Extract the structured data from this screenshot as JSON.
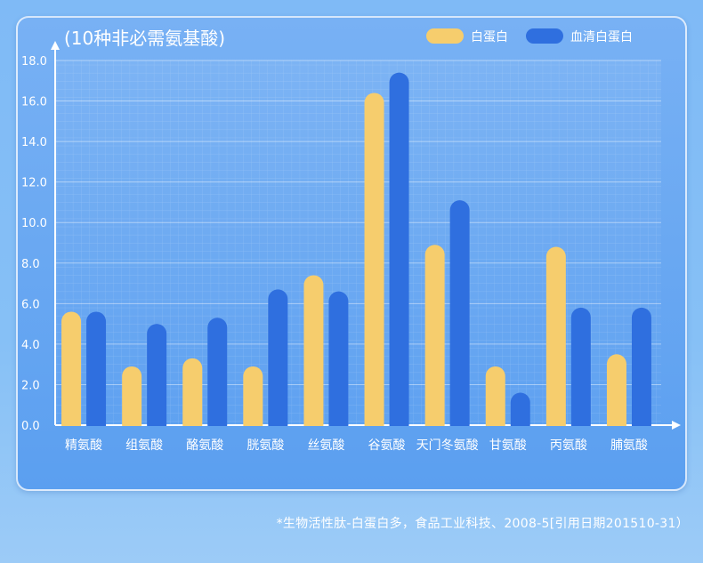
{
  "chart_data": {
    "type": "bar",
    "title": "(10种非必需氨基酸)",
    "categories": [
      "精氨酸",
      "组氨酸",
      "酪氨酸",
      "胱氨酸",
      "丝氨酸",
      "谷氨酸",
      "天门冬氨酸",
      "甘氨酸",
      "丙氨酸",
      "脯氨酸"
    ],
    "series": [
      {
        "name": "白蛋白",
        "color": "#f6cd6d",
        "values": [
          5.6,
          2.9,
          3.3,
          2.9,
          7.4,
          16.4,
          8.9,
          2.9,
          8.8,
          3.5
        ]
      },
      {
        "name": "血清白蛋白",
        "color": "#2f6fdf",
        "values": [
          5.6,
          5.0,
          5.3,
          6.7,
          6.6,
          17.4,
          11.1,
          1.6,
          5.8,
          5.8
        ]
      }
    ],
    "yticks": [
      "0.0",
      "2.0",
      "4.0",
      "6.0",
      "8.0",
      "10.0",
      "12.0",
      "14.0",
      "16.0",
      "18.0"
    ],
    "ylim": [
      0,
      18
    ],
    "xlabel": "",
    "ylabel": "",
    "grid": true,
    "legend_position": "top-right"
  },
  "footnote": "*生物活性肽-白蛋白多，食品工业科技、2008-5[引用日期201510-31）"
}
